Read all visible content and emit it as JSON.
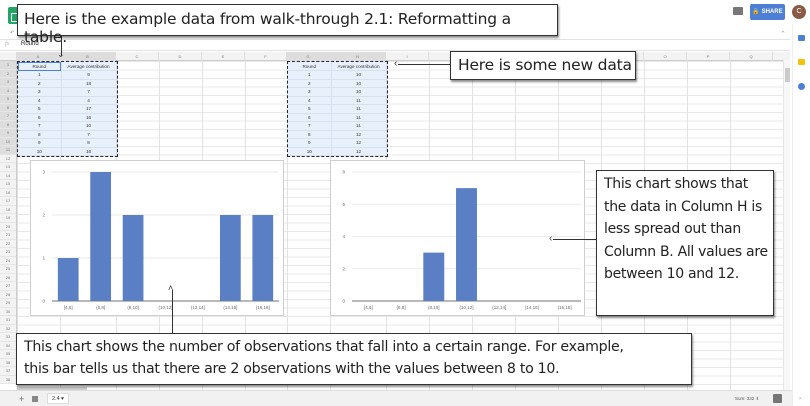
{
  "app": {
    "share_label": "SHARE",
    "avatar_initial": "C",
    "formula_bar": {
      "fx_label": "fx",
      "value": "Round"
    },
    "toolbar_hint": "↶"
  },
  "grid": {
    "columns_left": [
      "A",
      "B",
      "C",
      "D",
      "E",
      "F"
    ],
    "columns_right": [
      "G",
      "H",
      "I",
      "J",
      "K",
      "L",
      "M",
      "N",
      "O",
      "P",
      "Q"
    ],
    "rows": [
      "1",
      "2",
      "3",
      "4",
      "5",
      "6",
      "7",
      "8",
      "9",
      "10",
      "11",
      "12",
      "13",
      "14",
      "15",
      "16",
      "17",
      "18",
      "19",
      "20",
      "21",
      "22",
      "23",
      "24",
      "25",
      "26",
      "27",
      "28",
      "29",
      "30",
      "31",
      "32",
      "33",
      "34",
      "35",
      "36",
      "37",
      "38"
    ]
  },
  "table_left": {
    "headers": [
      "Round",
      "Average contribution"
    ],
    "rows": [
      [
        "1",
        "9"
      ],
      [
        "2",
        "18"
      ],
      [
        "3",
        "7"
      ],
      [
        "4",
        "4"
      ],
      [
        "5",
        "17"
      ],
      [
        "6",
        "16"
      ],
      [
        "7",
        "10"
      ],
      [
        "8",
        "7"
      ],
      [
        "9",
        "8"
      ],
      [
        "10",
        "16"
      ]
    ]
  },
  "table_right": {
    "headers": [
      "Round",
      "Average contribution"
    ],
    "rows": [
      [
        "1",
        "10"
      ],
      [
        "2",
        "10"
      ],
      [
        "3",
        "10"
      ],
      [
        "4",
        "11"
      ],
      [
        "5",
        "11"
      ],
      [
        "6",
        "11"
      ],
      [
        "7",
        "11"
      ],
      [
        "8",
        "12"
      ],
      [
        "9",
        "12"
      ],
      [
        "10",
        "12"
      ]
    ]
  },
  "chart_data": [
    {
      "type": "bar",
      "title": "",
      "categories": [
        "[4,6]",
        "(6,8]",
        "(8,10]",
        "(10,12]",
        "(12,14]",
        "(14,16]",
        "(16,18]"
      ],
      "values": [
        1,
        3,
        2,
        0,
        0,
        2,
        2
      ],
      "xlabel": "",
      "ylabel": "",
      "yticks": [
        0,
        1,
        2,
        3
      ],
      "ylim": [
        0,
        3
      ],
      "grid": true,
      "color": "#5b7fc4"
    },
    {
      "type": "bar",
      "title": "",
      "categories": [
        "[4,6]",
        "(6,8]",
        "(8,10]",
        "(10,12]",
        "(12,14]",
        "(14,16]",
        "(16,18]"
      ],
      "values": [
        0,
        0,
        3,
        7,
        0,
        0,
        0
      ],
      "xlabel": "",
      "ylabel": "",
      "yticks": [
        0,
        2,
        4,
        6,
        8
      ],
      "ylim": [
        0,
        8
      ],
      "grid": true,
      "color": "#5b7fc4"
    }
  ],
  "callouts": {
    "top": "Here is the example data from walk-through 2.1: Reformatting a table.",
    "new_data": "Here is some new data",
    "right": "This chart shows that the data in Column H is less spread out than Column B. All values are between 10 and 12.",
    "bottom_line1": "This chart shows the number of observations that fall into a certain range. For example,",
    "bottom_line2": "this bar tells us that there are 2 observations with the values between 8 to 10."
  },
  "bottom_bar": {
    "add_sheet": "+",
    "sheet_tab": "2.4",
    "sum_status": "Sum: 332 ⇕"
  },
  "colors": {
    "bar": "#5b7fc4",
    "share": "#4d7fd4",
    "selection": "#e8f0fb"
  }
}
